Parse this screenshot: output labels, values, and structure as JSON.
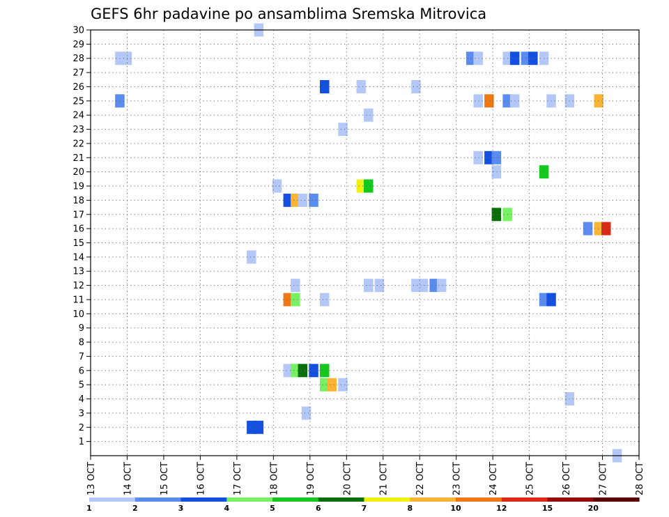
{
  "chart_data": {
    "type": "heatmap",
    "title": "GEFS 6hr padavine po ansamblima Sremska Mitrovica",
    "x_tick_labels": [
      "13 OCT",
      "14 OCT",
      "15 OCT",
      "16 OCT",
      "17 OCT",
      "18 OCT",
      "19 OCT",
      "20 OCT",
      "21 OCT",
      "22 OCT",
      "23 OCT",
      "24 OCT",
      "25 OCT",
      "26 OCT",
      "27 OCT",
      "28 OCT"
    ],
    "y_tick_labels": [
      "1",
      "2",
      "3",
      "4",
      "5",
      "6",
      "7",
      "8",
      "9",
      "10",
      "11",
      "12",
      "13",
      "14",
      "15",
      "16",
      "17",
      "18",
      "19",
      "20",
      "21",
      "22",
      "23",
      "24",
      "25",
      "26",
      "27",
      "28",
      "29",
      "30"
    ],
    "xlim_days": [
      13,
      28
    ],
    "ylim": [
      0,
      30
    ],
    "grid": true,
    "colorbar": {
      "labels": [
        "1",
        "2",
        "3",
        "4",
        "5",
        "6",
        "7",
        "8",
        "10",
        "12",
        "15",
        "20"
      ],
      "colors": [
        "#b4c8f8",
        "#5a8cf0",
        "#1450e0",
        "#78f064",
        "#14c81e",
        "#0a6e0a",
        "#f0f014",
        "#f8b432",
        "#f07814",
        "#dc2814",
        "#960a0a",
        "#5a0000"
      ]
    },
    "cells": [
      {
        "d": 14.0,
        "m": 28,
        "l": 1
      },
      {
        "d": 13.8,
        "m": 28,
        "l": 1
      },
      {
        "d": 13.8,
        "m": 25,
        "l": 2
      },
      {
        "d": 17.6,
        "m": 30,
        "l": 1
      },
      {
        "d": 17.4,
        "m": 14,
        "l": 1
      },
      {
        "d": 17.4,
        "m": 2,
        "l": 3
      },
      {
        "d": 17.6,
        "m": 2,
        "l": 3
      },
      {
        "d": 18.1,
        "m": 19,
        "l": 1
      },
      {
        "d": 18.4,
        "m": 18,
        "l": 3
      },
      {
        "d": 18.6,
        "m": 18,
        "l": 8
      },
      {
        "d": 18.8,
        "m": 18,
        "l": 1
      },
      {
        "d": 19.1,
        "m": 18,
        "l": 2
      },
      {
        "d": 18.6,
        "m": 12,
        "l": 1
      },
      {
        "d": 18.4,
        "m": 11,
        "l": 9
      },
      {
        "d": 18.6,
        "m": 11,
        "l": 4
      },
      {
        "d": 18.4,
        "m": 6,
        "l": 1
      },
      {
        "d": 18.6,
        "m": 6,
        "l": 4
      },
      {
        "d": 18.8,
        "m": 6,
        "l": 6
      },
      {
        "d": 19.1,
        "m": 6,
        "l": 3
      },
      {
        "d": 19.4,
        "m": 6,
        "l": 5
      },
      {
        "d": 18.9,
        "m": 3,
        "l": 1
      },
      {
        "d": 19.4,
        "m": 26,
        "l": 3
      },
      {
        "d": 19.4,
        "m": 11,
        "l": 1
      },
      {
        "d": 19.4,
        "m": 5,
        "l": 4
      },
      {
        "d": 19.6,
        "m": 5,
        "l": 8
      },
      {
        "d": 19.9,
        "m": 5,
        "l": 1
      },
      {
        "d": 19.9,
        "m": 23,
        "l": 1
      },
      {
        "d": 20.4,
        "m": 26,
        "l": 1
      },
      {
        "d": 20.6,
        "m": 24,
        "l": 1
      },
      {
        "d": 20.4,
        "m": 19,
        "l": 7
      },
      {
        "d": 20.6,
        "m": 19,
        "l": 5
      },
      {
        "d": 20.6,
        "m": 12,
        "l": 1
      },
      {
        "d": 20.9,
        "m": 12,
        "l": 1
      },
      {
        "d": 21.9,
        "m": 26,
        "l": 1
      },
      {
        "d": 21.9,
        "m": 12,
        "l": 1
      },
      {
        "d": 22.1,
        "m": 12,
        "l": 1
      },
      {
        "d": 22.4,
        "m": 12,
        "l": 2
      },
      {
        "d": 22.6,
        "m": 12,
        "l": 1
      },
      {
        "d": 23.4,
        "m": 28,
        "l": 2
      },
      {
        "d": 23.6,
        "m": 28,
        "l": 1
      },
      {
        "d": 23.6,
        "m": 25,
        "l": 1
      },
      {
        "d": 23.9,
        "m": 25,
        "l": 9
      },
      {
        "d": 23.6,
        "m": 21,
        "l": 1
      },
      {
        "d": 23.9,
        "m": 21,
        "l": 3
      },
      {
        "d": 24.1,
        "m": 21,
        "l": 2
      },
      {
        "d": 24.1,
        "m": 20,
        "l": 1
      },
      {
        "d": 24.1,
        "m": 17,
        "l": 6
      },
      {
        "d": 24.4,
        "m": 17,
        "l": 4
      },
      {
        "d": 24.4,
        "m": 28,
        "l": 1
      },
      {
        "d": 24.6,
        "m": 28,
        "l": 3
      },
      {
        "d": 24.9,
        "m": 28,
        "l": 2
      },
      {
        "d": 25.1,
        "m": 28,
        "l": 3
      },
      {
        "d": 25.4,
        "m": 28,
        "l": 1
      },
      {
        "d": 24.4,
        "m": 25,
        "l": 2
      },
      {
        "d": 24.6,
        "m": 25,
        "l": 1
      },
      {
        "d": 25.4,
        "m": 20,
        "l": 5
      },
      {
        "d": 25.4,
        "m": 11,
        "l": 2
      },
      {
        "d": 25.6,
        "m": 11,
        "l": 3
      },
      {
        "d": 25.6,
        "m": 25,
        "l": 1
      },
      {
        "d": 26.1,
        "m": 25,
        "l": 1
      },
      {
        "d": 26.1,
        "m": 4,
        "l": 1
      },
      {
        "d": 26.6,
        "m": 16,
        "l": 2
      },
      {
        "d": 26.9,
        "m": 16,
        "l": 8
      },
      {
        "d": 27.1,
        "m": 16,
        "l": 10
      },
      {
        "d": 26.9,
        "m": 25,
        "l": 8
      },
      {
        "d": 27.4,
        "m": 0,
        "l": 1
      }
    ]
  }
}
